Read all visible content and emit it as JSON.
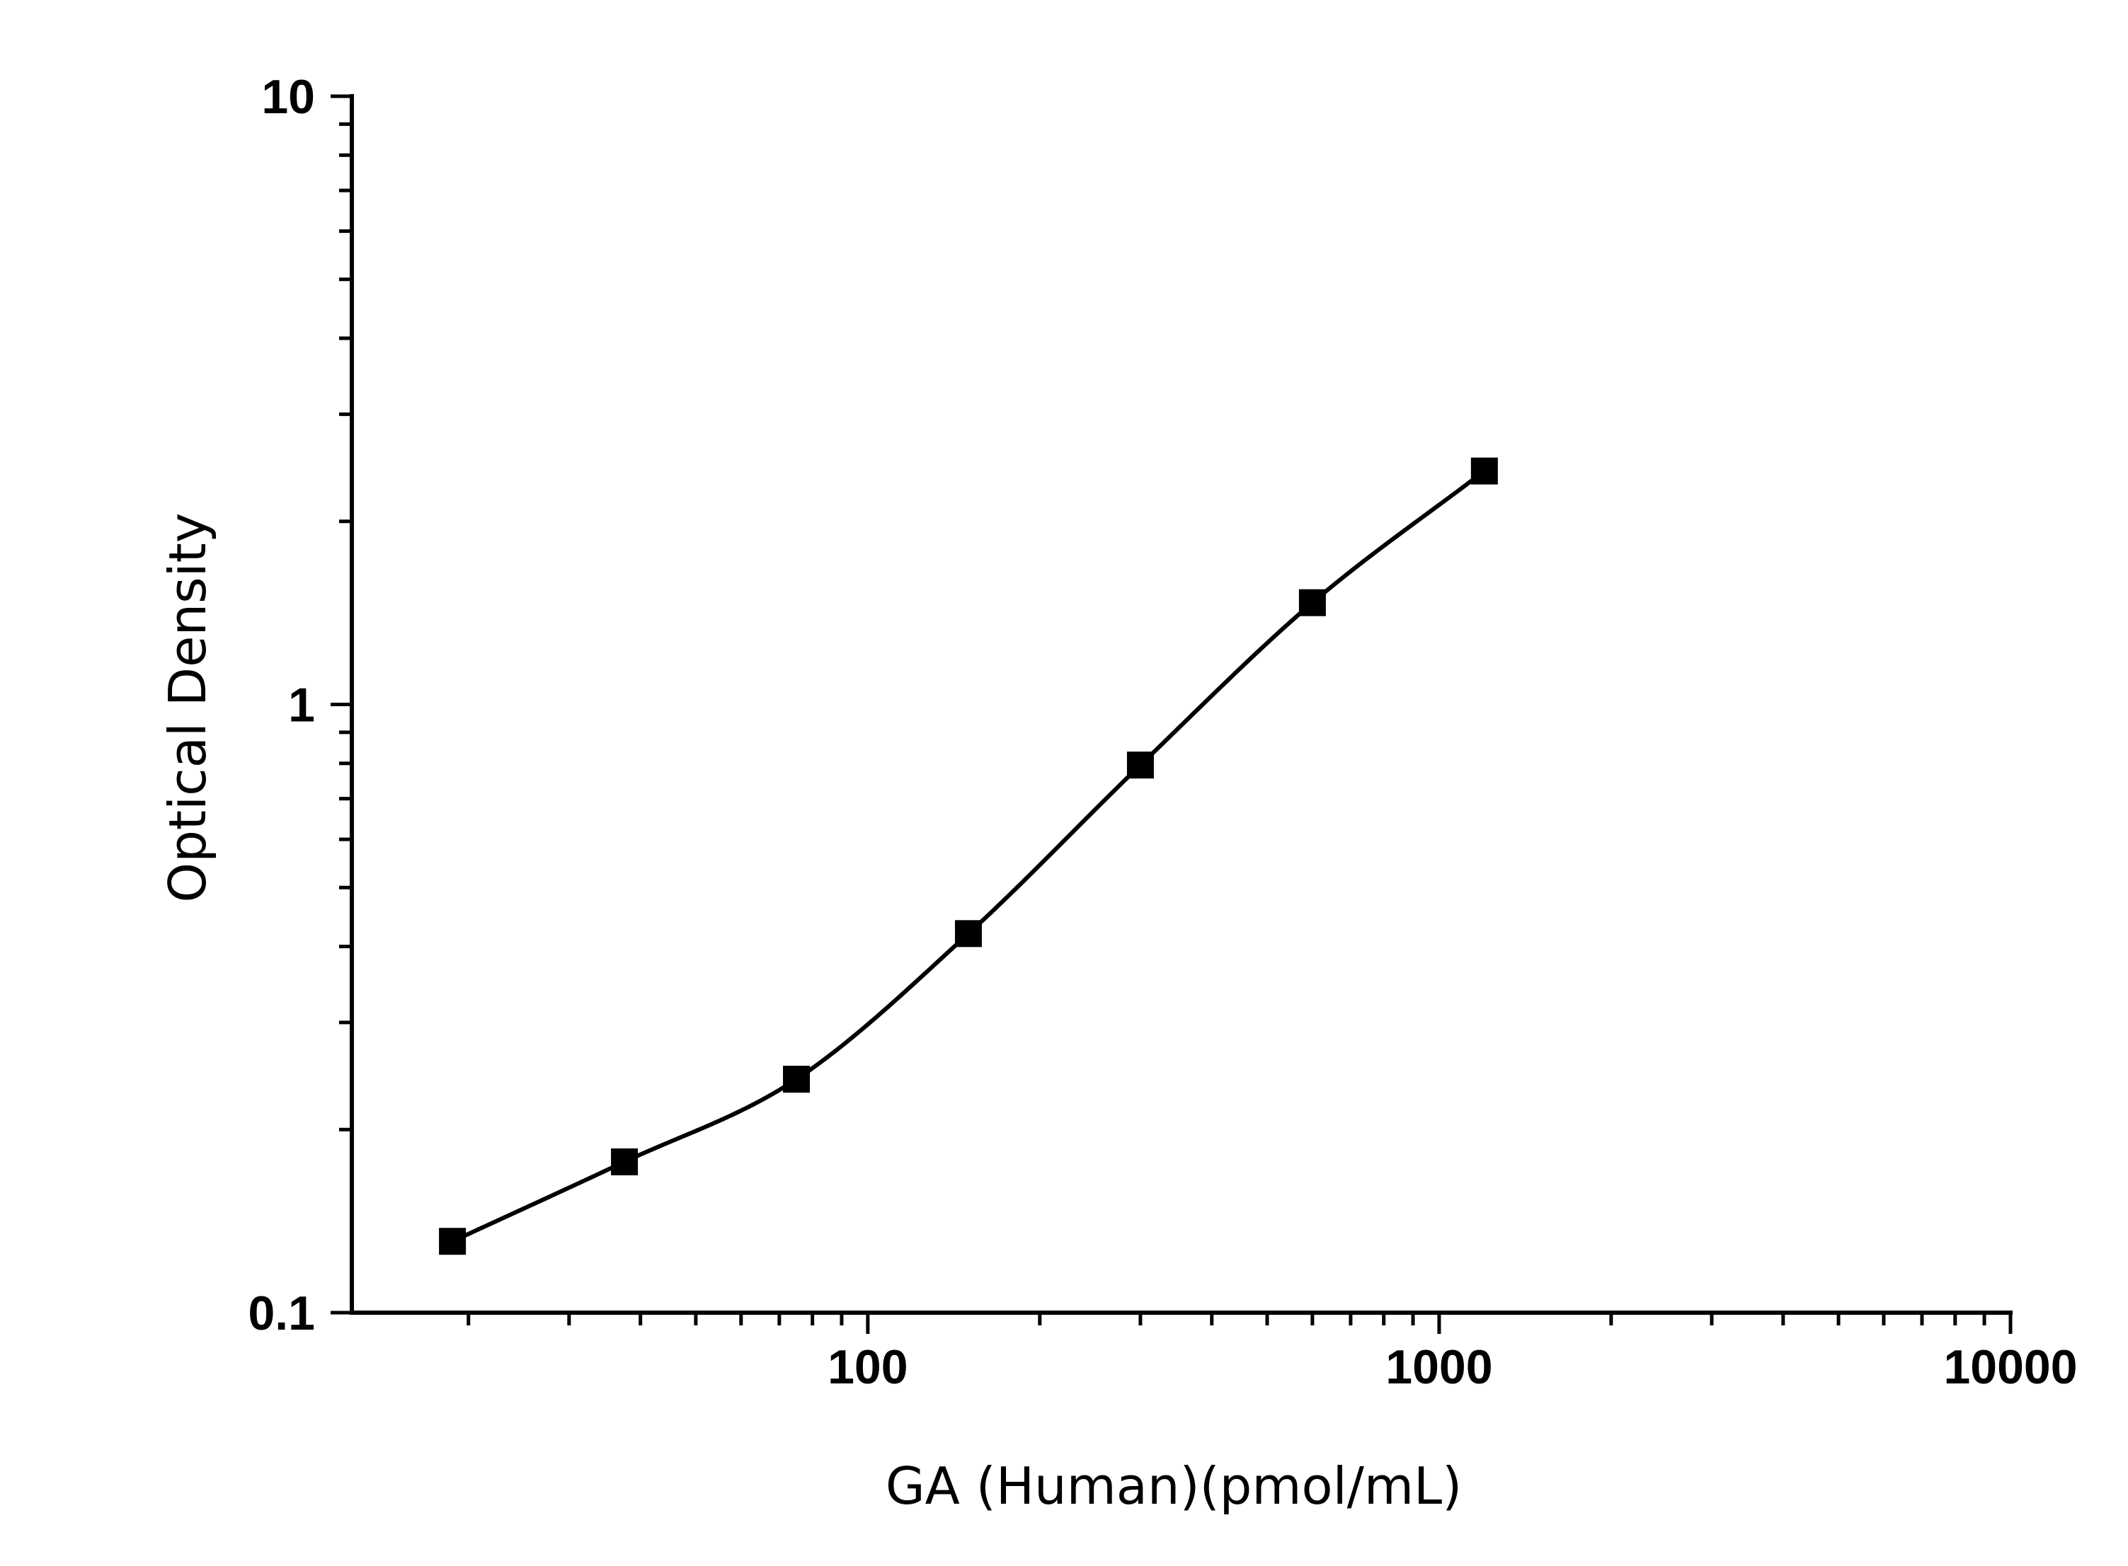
{
  "chart_data": {
    "type": "scatter",
    "title": "",
    "xlabel": "GA (Human)(pmol/mL)",
    "ylabel": "Optical Density",
    "x_scale": "log",
    "y_scale": "log",
    "xlim": [
      12.5,
      10000
    ],
    "ylim": [
      0.1,
      10
    ],
    "x_ticks": [
      100,
      1000,
      10000
    ],
    "x_tick_labels": [
      "100",
      "1000",
      "10000"
    ],
    "y_ticks": [
      0.1,
      1,
      10
    ],
    "y_tick_labels": [
      "0.1",
      "1",
      "10"
    ],
    "grid": false,
    "legend": "none",
    "series": [
      {
        "marker": "square",
        "color": "#000000",
        "fit": "smooth curve",
        "x": [
          18.75,
          37.5,
          75,
          150,
          300,
          600,
          1200
        ],
        "y": [
          0.131,
          0.177,
          0.242,
          0.42,
          0.795,
          1.47,
          2.42
        ]
      }
    ]
  }
}
